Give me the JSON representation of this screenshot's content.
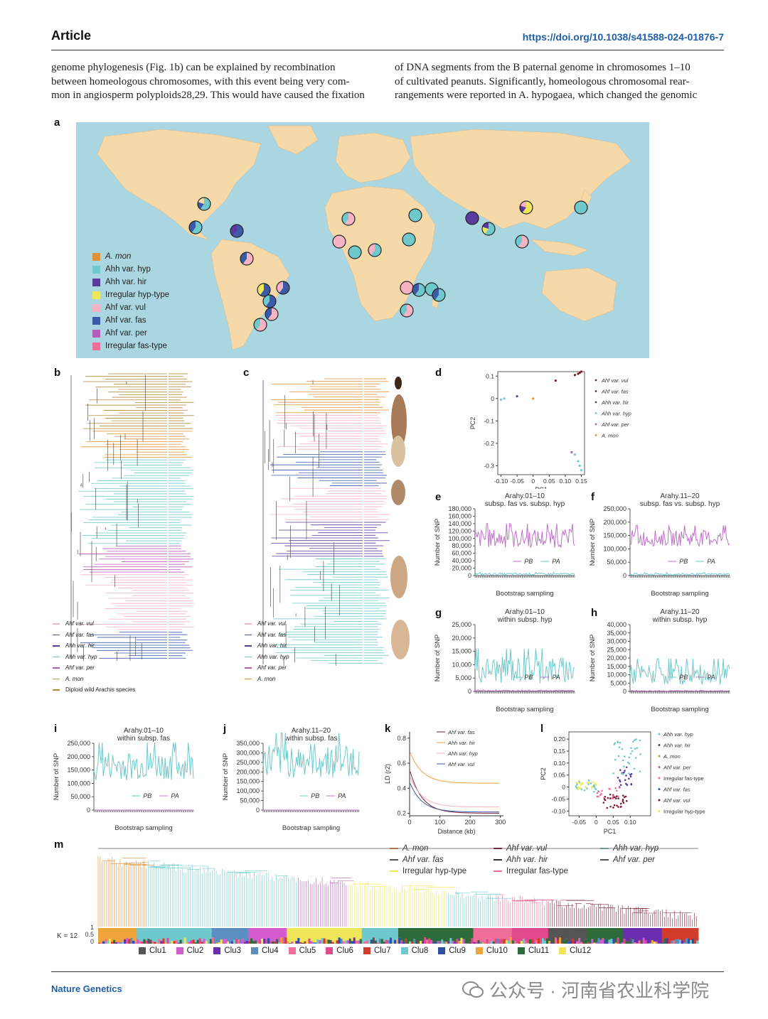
{
  "header": {
    "title": "Article",
    "doi": "https://doi.org/10.1038/s41588-024-01876-7"
  },
  "body_text": {
    "left": [
      "genome phylogenesis (Fig. 1b) can be explained by recombination",
      "between homeologous chromosomes, with this event being very com-",
      "mon in angiosperm polyploids28,29. This would have caused the fixation"
    ],
    "right": [
      "of DNA segments from the B paternal genome in chromosomes 1–10",
      "of cultivated peanuts. Significantly, homeologous chromosomal rear-",
      "rangements were reported in A. hypogaea, which changed the genomic"
    ]
  },
  "panel_letters": [
    "a",
    "b",
    "c",
    "d",
    "e",
    "f",
    "g",
    "h",
    "i",
    "j",
    "k",
    "l",
    "m"
  ],
  "colors": {
    "mon": "#e0913a",
    "hyp": "#6ec9cc",
    "hir": "#5b3a9e",
    "irr_hyp": "#f0e65a",
    "vul": "#f5b3c4",
    "fas": "#3b5aa8",
    "per": "#b45cb8",
    "irr_fas": "#ef6f9a",
    "land": "#f5d9a8",
    "ocean": "#a9d6e0",
    "wild": "#b08a3c"
  },
  "legend_a": [
    {
      "label": "A. mon",
      "color": "#e0913a"
    },
    {
      "label": "Ahh var. hyp",
      "color": "#6ec9cc"
    },
    {
      "label": "Ahh var. hir",
      "color": "#5b3a9e"
    },
    {
      "label": "Irregular hyp-type",
      "color": "#f0e65a"
    },
    {
      "label": "Ahf var. vul",
      "color": "#f5b3c4"
    },
    {
      "label": "Ahf var. fas",
      "color": "#3b5aa8"
    },
    {
      "label": "Ahf var. per",
      "color": "#b45cb8"
    },
    {
      "label": "Irregular fas-type",
      "color": "#ef6f9a"
    }
  ],
  "legend_b": [
    {
      "label": "Ahf var. vul",
      "color": "#f5b3c4"
    },
    {
      "label": "Ahf var. fas",
      "color": "#3b5aa8"
    },
    {
      "label": "Ahh var. hir",
      "color": "#5b3a9e"
    },
    {
      "label": "Ahh var. hyp",
      "color": "#6ec9cc"
    },
    {
      "label": "Ahf var. per",
      "color": "#b45cb8"
    },
    {
      "label": "A. mon",
      "color": "#e0913a"
    },
    {
      "label": "Diploid wild Arachis species",
      "color": "#b08a3c"
    }
  ],
  "legend_c": [
    {
      "label": "Ahf var. vul",
      "color": "#f5b3c4"
    },
    {
      "label": "Ahf var. fas",
      "color": "#3b5aa8"
    },
    {
      "label": "Ahh var. hir",
      "color": "#5b3a9e"
    },
    {
      "label": "Ahh var. hyp",
      "color": "#6ec9cc"
    },
    {
      "label": "Ahf var. per",
      "color": "#b45cb8"
    },
    {
      "label": "A. mon",
      "color": "#e0913a"
    }
  ],
  "chart_data": [
    {
      "panel": "d",
      "type": "scatter",
      "xlabel": "PC1",
      "ylabel": "PC2",
      "xticks": [
        "-0.10",
        "-0.05",
        "0",
        "0.05",
        "0.10",
        "0.15"
      ],
      "yticks": [
        "0.1",
        "0",
        "-0.1",
        "-0.2",
        "-0.3"
      ],
      "xlim": [
        -0.11,
        0.16
      ],
      "ylim": [
        -0.34,
        0.12
      ],
      "series": [
        {
          "name": "Ahf var. vul",
          "color": "#7a1f2e",
          "points": [
            [
              0.14,
              0.11
            ],
            [
              0.145,
              0.115
            ],
            [
              0.15,
              0.12
            ],
            [
              0.13,
              0.105
            ]
          ]
        },
        {
          "name": "Ahf var. fas",
          "color": "#7a1f2e",
          "points": [
            [
              0.07,
              0.08
            ]
          ]
        },
        {
          "name": "Ahh var. hir",
          "color": "#5b3a9e",
          "points": [
            [
              -0.05,
              0.01
            ]
          ]
        },
        {
          "name": "Ahh var. hyp",
          "color": "#6ec9cc",
          "points": [
            [
              0.13,
              -0.25
            ],
            [
              0.14,
              -0.28
            ],
            [
              0.145,
              -0.3
            ],
            [
              0.15,
              -0.32
            ],
            [
              -0.1,
              -0.005
            ],
            [
              -0.09,
              0
            ]
          ]
        },
        {
          "name": "Ahf var. per",
          "color": "#b45cb8",
          "points": [
            [
              0.12,
              -0.24
            ]
          ]
        },
        {
          "name": "A. mon",
          "color": "#e0913a",
          "points": [
            [
              0.0,
              0.0
            ]
          ]
        }
      ],
      "legend": [
        "Ahf var. vul",
        "Ahf var. fas",
        "Ahh var. hir",
        "Ahh var. hyp",
        "Ahf var. per",
        "A. mon"
      ]
    },
    {
      "panel": "e",
      "type": "line",
      "title": [
        "Arahy.01–10",
        "subsp. fas vs. subsp. hyp"
      ],
      "ylabel": "Number of SNP",
      "xlabel": "Bootstrap sampling",
      "yticks": [
        "180,000",
        "160,000",
        "140,000",
        "120,000",
        "100,000",
        "80,000",
        "60,000",
        "40,000",
        "20,000",
        "0"
      ],
      "ylim": [
        0,
        180000
      ],
      "series_colors": [
        "#c070c8",
        "#6ec9cc"
      ],
      "legend": [
        "PB",
        "PA"
      ],
      "high": {
        "base": 100000,
        "amp": 25000
      },
      "low": {
        "base": 4000,
        "amp": 3000
      }
    },
    {
      "panel": "f",
      "type": "line",
      "title": [
        "Arahy.11–20",
        "subsp. fas vs. subsp. hyp"
      ],
      "ylabel": "Number of SNP",
      "xlabel": "Bootstrap sampling",
      "yticks": [
        "250,000",
        "200,000",
        "150,000",
        "100,000",
        "50,000",
        "0"
      ],
      "ylim": [
        0,
        250000
      ],
      "series_colors": [
        "#c070c8",
        "#6ec9cc"
      ],
      "legend": [
        "PB",
        "PA"
      ],
      "high": {
        "base": 140000,
        "amp": 30000
      },
      "low": {
        "base": 5000,
        "amp": 4000
      }
    },
    {
      "panel": "g",
      "type": "line",
      "title": [
        "Arahy.01–10",
        "within subsp. hyp"
      ],
      "ylabel": "Number of SNP",
      "xlabel": "Bootstrap sampling",
      "yticks": [
        "25,000",
        "20,000",
        "15,000",
        "10,000",
        "5,000",
        "0"
      ],
      "ylim": [
        0,
        25000
      ],
      "series_colors": [
        "#6ec9cc",
        "#c070c8"
      ],
      "legend": [
        "PB",
        "PA"
      ],
      "high": {
        "base": 8000,
        "amp": 5000
      },
      "low": {
        "base": 300,
        "amp": 200
      }
    },
    {
      "panel": "h",
      "type": "line",
      "title": [
        "Arahy.11–20",
        "within subsp. hyp"
      ],
      "ylabel": "Number of SNP",
      "xlabel": "Bootstrap sampling",
      "yticks": [
        "40,000",
        "35,000",
        "30,000",
        "25,000",
        "20,000",
        "15,000",
        "10,000",
        "5,000",
        "0"
      ],
      "ylim": [
        0,
        40000
      ],
      "series_colors": [
        "#6ec9cc",
        "#c070c8"
      ],
      "legend": [
        "PB",
        "PA"
      ],
      "high": {
        "base": 10000,
        "amp": 6000
      },
      "low": {
        "base": 300,
        "amp": 200
      }
    },
    {
      "panel": "i",
      "type": "line",
      "title": [
        "Arahy.01–10",
        "within subsp. fas"
      ],
      "ylabel": "Number of SNP",
      "xlabel": "Bootstrap sampling",
      "yticks": [
        "250,000",
        "200,000",
        "150,000",
        "100,000",
        "50,000",
        "0"
      ],
      "ylim": [
        0,
        250000
      ],
      "series_colors": [
        "#6ec9cc",
        "#c070c8"
      ],
      "legend": [
        "PB",
        "PA"
      ],
      "high": {
        "base": 165000,
        "amp": 55000
      },
      "low": {
        "base": 0,
        "amp": 0
      }
    },
    {
      "panel": "j",
      "type": "line",
      "title": [
        "Arahy.11–20",
        "within subsp. fas"
      ],
      "ylabel": "Number of SNP",
      "xlabel": "Bootstrap sampling",
      "yticks": [
        "350,000",
        "300,000",
        "250,000",
        "200,000",
        "150,000",
        "100,000",
        "50,000",
        "0"
      ],
      "ylim": [
        0,
        350000
      ],
      "series_colors": [
        "#6ec9cc",
        "#c070c8"
      ],
      "legend": [
        "PB",
        "PA"
      ],
      "high": {
        "base": 260000,
        "amp": 90000
      },
      "low": {
        "base": 0,
        "amp": 0
      }
    },
    {
      "panel": "k",
      "type": "line",
      "xlabel": "Distance (kb)",
      "ylabel": "LD (r2)",
      "xticks": [
        "0",
        "100",
        "200",
        "300"
      ],
      "yticks": [
        "0.8",
        "0.6",
        "0.4",
        "0.2"
      ],
      "xlim": [
        0,
        310
      ],
      "ylim": [
        0.18,
        0.85
      ],
      "series": [
        {
          "name": "Ahf var. fas",
          "color": "#7a1f2e",
          "start": 0.55,
          "end": 0.2
        },
        {
          "name": "Ahh var. hir",
          "color": "#f0a43a",
          "start": 0.7,
          "end": 0.44
        },
        {
          "name": "Ahh var. hyp",
          "color": "#f5b3c4",
          "start": 0.5,
          "end": 0.25
        },
        {
          "name": "Ahf var. vul",
          "color": "#3b5aa8",
          "start": 0.45,
          "end": 0.21
        }
      ]
    },
    {
      "panel": "l",
      "type": "scatter",
      "xlabel": "PC1",
      "ylabel": "PC2",
      "xticks": [
        "-0.05",
        "0",
        "0.05",
        "0.10"
      ],
      "yticks": [
        "0.20",
        "0.15",
        "0.10",
        "0.05",
        "0",
        "-0.05",
        "-0.10"
      ],
      "xlim": [
        -0.08,
        0.16
      ],
      "ylim": [
        -0.12,
        0.23
      ],
      "legend": [
        "Ahh var. hyp",
        "Ahh var. hir",
        "A. mon",
        "Ahf var. per",
        "Irregular fas-type",
        "Ahf var. fas",
        "Ahf var. vul",
        "Irregular hyp-type"
      ],
      "legend_colors": [
        "#6ec9cc",
        "#5b3a9e",
        "#e0913a",
        "#b45cb8",
        "#ef6f9a",
        "#3b5aa8",
        "#7a1f2e",
        "#f0e65a"
      ]
    }
  ],
  "panel_m": {
    "legend": [
      {
        "label": "A. mon",
        "color": "#e0913a"
      },
      {
        "label": "Ahf var. vul",
        "color": "#7a1f2e"
      },
      {
        "label": "Ahh var. hyp",
        "color": "#6ec9cc"
      },
      {
        "label": "Ahf var. fas",
        "color": "#555555"
      },
      {
        "label": "Ahh var. hir",
        "color": "#333333"
      },
      {
        "label": "Ahf var. per",
        "color": "#555555"
      },
      {
        "label": "Irregular hyp-type",
        "color": "#f0e65a"
      },
      {
        "label": "Irregular fas-type",
        "color": "#ef6f9a"
      }
    ],
    "k_label": "K = 12",
    "yticks": [
      "1",
      "0.5",
      "0"
    ],
    "clusters": [
      {
        "label": "Clu1",
        "color": "#555555"
      },
      {
        "label": "Clu2",
        "color": "#d45cd0"
      },
      {
        "label": "Clu3",
        "color": "#6a2fb0"
      },
      {
        "label": "Clu4",
        "color": "#5a8fc0"
      },
      {
        "label": "Clu5",
        "color": "#ef6f9a"
      },
      {
        "label": "Clu6",
        "color": "#e04a8a"
      },
      {
        "label": "Clu7",
        "color": "#d23a2a"
      },
      {
        "label": "Clu8",
        "color": "#6ec9cc"
      },
      {
        "label": "Clu9",
        "color": "#2e4fa8"
      },
      {
        "label": "Clu10",
        "color": "#f0a43a"
      },
      {
        "label": "Clu11",
        "color": "#2e6b3a"
      },
      {
        "label": "Clu12",
        "color": "#f0e65a"
      }
    ]
  },
  "footer": {
    "journal": "Nature Genetics",
    "watermark": "公众号 · 河南省农业科学院"
  }
}
